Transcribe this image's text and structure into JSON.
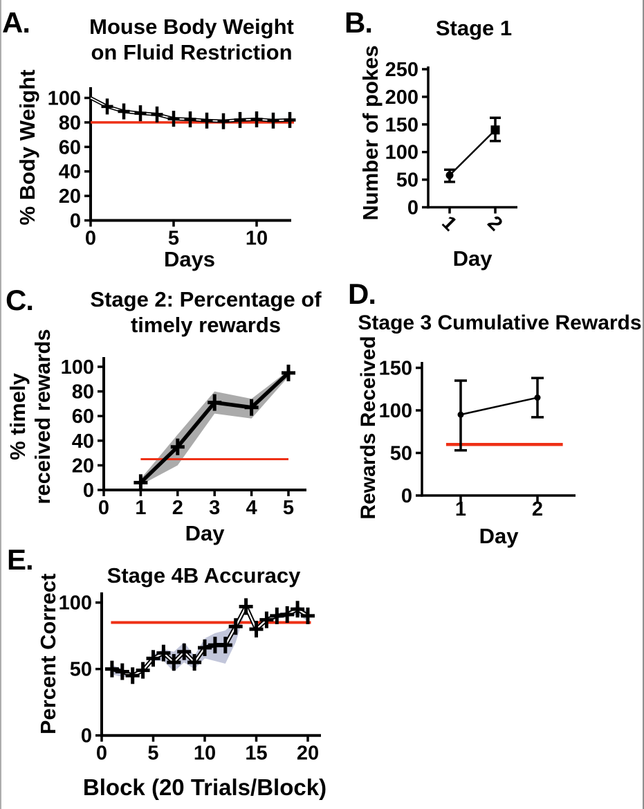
{
  "figure": {
    "background": "#ffffff",
    "frame_color": "#9b9b9b",
    "ink": "#000000",
    "accent_red": "#ee3016",
    "band_gray": "#ababab",
    "band_blue": "#c2c6da"
  },
  "chart_data": [
    {
      "id": "A",
      "panel_label": "A.",
      "type": "line",
      "title_lines": [
        "Mouse Body Weight",
        "on Fluid Restriction"
      ],
      "ylabel_lines": [
        "% Body Weight"
      ],
      "xlabel": "Days",
      "x": [
        0,
        1,
        2,
        3,
        4,
        5,
        6,
        7,
        8,
        9,
        10,
        11,
        12
      ],
      "values": [
        100,
        93,
        89,
        87.5,
        86.5,
        83,
        82.5,
        81.5,
        81,
        82,
        82.5,
        81.5,
        82
      ],
      "yticks": [
        0,
        20,
        40,
        60,
        80,
        100
      ],
      "xticks": [
        0,
        5,
        10
      ],
      "ylim": [
        0,
        109
      ],
      "xlim": [
        0,
        12.3
      ],
      "marker": "plus",
      "marker_first": false,
      "line": "outlined",
      "ref_line": {
        "value": 80,
        "x_start": 0,
        "x_end": 12.25
      },
      "grid": false,
      "legend": false
    },
    {
      "id": "B",
      "panel_label": "B.",
      "type": "line",
      "title_lines": [
        "Stage 1"
      ],
      "ylabel_lines": [
        "Number of pokes"
      ],
      "xlabel": "Day",
      "x": [
        1,
        2
      ],
      "values": [
        58,
        140
      ],
      "err_low": [
        46,
        120
      ],
      "err_high": [
        68,
        162
      ],
      "yticks": [
        0,
        50,
        100,
        150,
        200,
        250
      ],
      "xticks": [
        1,
        2
      ],
      "xtick_rotated": true,
      "ylim": [
        0,
        255
      ],
      "xlim": [
        0.5,
        2.5
      ],
      "markers": [
        "circle",
        "square"
      ],
      "line": "thin",
      "grid": false,
      "legend": false
    },
    {
      "id": "C",
      "panel_label": "C.",
      "type": "line",
      "title_lines": [
        "Stage 2: Percentage of",
        "timely rewards"
      ],
      "ylabel_lines": [
        "% timely",
        "received rewards"
      ],
      "xlabel": "Day",
      "x": [
        1,
        2,
        3,
        4,
        5
      ],
      "values": [
        6,
        35,
        71,
        67,
        95
      ],
      "band_low": [
        4,
        20,
        62,
        58,
        92
      ],
      "band_high": [
        9,
        45,
        80,
        74,
        97
      ],
      "band_color": "band_gray",
      "yticks": [
        0,
        20,
        40,
        60,
        80,
        100
      ],
      "xticks": [
        0,
        1,
        2,
        3,
        4,
        5
      ],
      "ylim": [
        0,
        108
      ],
      "xlim": [
        0,
        5.5
      ],
      "marker": "plus",
      "line": "thick",
      "ref_line": {
        "value": 25,
        "x_start": 1,
        "x_end": 5
      },
      "grid": false,
      "legend": false
    },
    {
      "id": "D",
      "panel_label": "D.",
      "type": "line",
      "title_lines": [
        "Stage 3 Cumulative Rewards"
      ],
      "ylabel_lines": [
        "Rewards Received"
      ],
      "xlabel": "Day",
      "x": [
        1,
        2
      ],
      "values": [
        95,
        115
      ],
      "err_low": [
        53,
        92
      ],
      "err_high": [
        135,
        138
      ],
      "yticks": [
        0,
        50,
        100,
        150
      ],
      "xticks": [
        1,
        2
      ],
      "ylim": [
        0,
        156
      ],
      "xlim": [
        0.5,
        2.5
      ],
      "markers": [
        "circle",
        "circle"
      ],
      "line": "thin",
      "ref_line": {
        "value": 60,
        "x_start": 0.81,
        "x_end": 2.33
      },
      "grid": false,
      "legend": false
    },
    {
      "id": "E",
      "panel_label": "E.",
      "type": "line",
      "title_lines": [
        "Stage 4B Accuracy"
      ],
      "ylabel_lines": [
        "Percent Correct"
      ],
      "xlabel": "Block (20 Trials/Block)",
      "x": [
        1,
        2,
        3,
        4,
        5,
        6,
        7,
        8,
        9,
        10,
        11,
        12,
        13,
        14,
        15,
        16,
        17,
        18,
        19,
        20
      ],
      "values": [
        50,
        48,
        45,
        49,
        58,
        62,
        55,
        63,
        55,
        66,
        68,
        68,
        82,
        97,
        80,
        87,
        90,
        91,
        95,
        90
      ],
      "band_low": [
        46,
        44,
        44,
        48,
        56,
        56,
        48,
        55,
        50,
        58,
        56,
        54,
        70,
        95,
        78,
        85,
        88,
        89,
        91,
        86
      ],
      "band_high": [
        53,
        50,
        47,
        51,
        61,
        65,
        63,
        70,
        60,
        73,
        77,
        79,
        86,
        99,
        82,
        89,
        92,
        93,
        98,
        93
      ],
      "band_color": "band_blue",
      "yticks": [
        0,
        50,
        100
      ],
      "xticks": [
        0,
        5,
        10,
        15,
        20
      ],
      "ylim": [
        0,
        108
      ],
      "xlim": [
        0,
        21.3
      ],
      "marker": "plus",
      "line": "outlined",
      "ref_line": {
        "value": 85,
        "x_start": 0.9,
        "x_end": 20.3
      },
      "grid": false,
      "legend": false
    }
  ]
}
